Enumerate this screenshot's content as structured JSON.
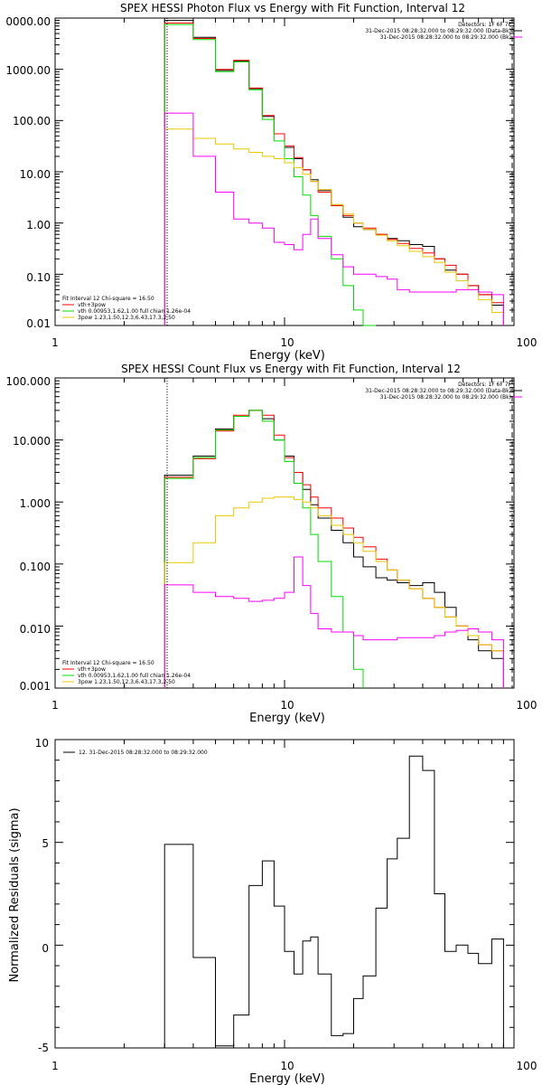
{
  "colors": {
    "total": "#000000",
    "vth_3pow": "#ff0000",
    "vth": "#00dd00",
    "pow": "#e8c800",
    "bk": "#ff00ff"
  },
  "chart_data": [
    {
      "type": "line",
      "title": "SPEX HESSI Photon Flux vs Energy with Fit Function, Interval 12",
      "xlabel": "Energy (keV)",
      "ylabel": "",
      "xscale": "log",
      "yscale": "log",
      "xlim": [
        1,
        100
      ],
      "ylim": [
        0.01,
        10000
      ],
      "xticks": [
        "1",
        "10",
        "100"
      ],
      "yticks": [
        "0.01",
        "0.10",
        "1.00",
        "10.00",
        "100.00",
        "1000.00",
        "0000.00"
      ],
      "legend_top": [
        "Detectors: 1F 6F 7F",
        "31-Dec-2015 08:28:32.000 to 08:29:32.000 (Data-Bk)",
        "31-Dec-2015 08:28:32.000 to 08:29:32.000 (Bk)"
      ],
      "legend_bottom": [
        "Fit Interval 12   Chi-square = 16.50",
        "vth+3pow",
        "vth 0.00953,1.62,1.00  full chian 1.26e-04",
        "3pow 1.23,1.50,12.3,6.43,17.3,2.50"
      ],
      "edges": [
        3,
        4,
        5,
        6,
        7,
        8,
        9,
        10,
        11,
        12,
        13,
        14,
        16,
        18,
        20,
        22,
        25,
        28,
        31,
        35,
        40,
        45,
        50,
        56,
        63,
        70,
        80,
        90
      ],
      "series": [
        {
          "name": "Data-Bk",
          "color_key": "total",
          "values": [
            9000,
            4200,
            950,
            1450,
            420,
            120,
            55,
            30,
            18,
            11,
            7,
            4.3,
            2.2,
            1.3,
            0.85,
            0.75,
            0.6,
            0.5,
            0.45,
            0.38,
            0.35,
            0.2,
            0.12,
            0.1,
            0.06,
            0.04,
            0.025
          ]
        },
        {
          "name": "vth+3pow",
          "color_key": "vth_3pow",
          "values": [
            8000,
            4000,
            1000,
            1500,
            430,
            125,
            55,
            32,
            19,
            11,
            6.5,
            4,
            2.2,
            1.4,
            1.0,
            0.8,
            0.6,
            0.48,
            0.4,
            0.32,
            0.26,
            0.2,
            0.15,
            0.1,
            0.06,
            0.04,
            0.028
          ]
        },
        {
          "name": "vth",
          "color_key": "vth",
          "values": [
            7500,
            3800,
            900,
            1400,
            400,
            105,
            40,
            18,
            8,
            3.5,
            1.4,
            0.55,
            0.2,
            0.06,
            0.02,
            0.009,
            null,
            null,
            null,
            null,
            null,
            null,
            null,
            null,
            null,
            null,
            null
          ]
        },
        {
          "name": "3pow",
          "color_key": "pow",
          "values": [
            68,
            45,
            35,
            28,
            24,
            20,
            18,
            15,
            12,
            9,
            6.5,
            4.5,
            2.3,
            1.5,
            1.0,
            0.75,
            0.58,
            0.45,
            0.36,
            0.28,
            0.22,
            0.17,
            0.11,
            0.075,
            0.05,
            0.032,
            0.018
          ]
        },
        {
          "name": "Bk",
          "color_key": "bk",
          "values": [
            140,
            20,
            4,
            1.2,
            1.0,
            0.8,
            0.42,
            0.38,
            0.3,
            0.6,
            1.2,
            0.5,
            0.24,
            0.14,
            0.1,
            0.1,
            0.09,
            0.08,
            0.05,
            0.045,
            0.045,
            0.045,
            0.045,
            0.05,
            0.05,
            0.045,
            0.04
          ]
        }
      ]
    },
    {
      "type": "line",
      "title": "SPEX HESSI Count Flux vs Energy with Fit Function, Interval 12",
      "xlabel": "Energy (keV)",
      "ylabel": "",
      "xscale": "log",
      "yscale": "log",
      "xlim": [
        1,
        100
      ],
      "ylim": [
        0.001,
        100
      ],
      "xticks": [
        "1",
        "10",
        "100"
      ],
      "yticks": [
        "0.001",
        "0.010",
        "0.100",
        "1.000",
        "10.000",
        "100.000"
      ],
      "legend_top": [
        "Detectors: 1F 6F 7F",
        "31-Dec-2015 08:28:32.000 to 08:29:32.000 (Data-Bk)",
        "31-Dec-2015 08:28:32.000 to 08:29:32.000 (Bk)"
      ],
      "legend_bottom": [
        "Fit Interval 12   Chi-square = 16.50",
        "vth+3pow",
        "vth 0.00953,1.62,1.00  full chian 1.26e-04",
        "3pow 1.23,1.50,12.3,6.43,17.3,2.50"
      ],
      "edges": [
        3,
        4,
        5,
        6,
        7,
        8,
        9,
        10,
        11,
        12,
        13,
        14,
        16,
        18,
        20,
        22,
        25,
        28,
        31,
        35,
        40,
        45,
        50,
        56,
        63,
        70,
        80,
        90
      ],
      "series": [
        {
          "name": "Data-Bk",
          "color_key": "total",
          "values": [
            2.7,
            5.5,
            15,
            24,
            30,
            22,
            10,
            5.5,
            3.0,
            1.6,
            0.9,
            0.55,
            0.35,
            0.22,
            0.13,
            0.09,
            0.06,
            0.055,
            0.05,
            0.045,
            0.05,
            0.035,
            0.02,
            0.01,
            0.006,
            0.004,
            0.003
          ]
        },
        {
          "name": "vth+3pow",
          "color_key": "vth_3pow",
          "values": [
            2.5,
            5.0,
            14,
            25,
            30,
            25,
            12,
            5.2,
            3.0,
            1.9,
            1.2,
            0.8,
            0.55,
            0.38,
            0.27,
            0.19,
            0.12,
            0.08,
            0.055,
            0.04,
            0.028,
            0.02,
            0.014,
            0.01,
            0.007,
            0.005,
            0.004
          ]
        },
        {
          "name": "vth",
          "color_key": "vth",
          "values": [
            2.4,
            5.2,
            14.5,
            24,
            30,
            20,
            10,
            4.5,
            2.0,
            0.8,
            0.3,
            0.11,
            0.03,
            0.008,
            0.002,
            null,
            null,
            null,
            null,
            null,
            null,
            null,
            null,
            null,
            null,
            null,
            null
          ]
        },
        {
          "name": "3pow",
          "color_key": "pow",
          "values": [
            0.105,
            0.22,
            0.6,
            0.8,
            1.0,
            1.15,
            1.2,
            1.2,
            1.1,
            1.0,
            0.8,
            0.6,
            0.42,
            0.3,
            0.22,
            0.16,
            0.11,
            0.08,
            0.055,
            0.04,
            0.028,
            0.02,
            0.014,
            0.01,
            0.007,
            0.005,
            0.004
          ]
        },
        {
          "name": "Bk",
          "color_key": "bk",
          "values": [
            0.046,
            0.035,
            0.03,
            0.028,
            0.025,
            0.026,
            0.028,
            0.035,
            0.13,
            0.045,
            0.016,
            0.009,
            0.008,
            0.008,
            0.007,
            0.006,
            0.006,
            0.006,
            0.0065,
            0.0065,
            0.0065,
            0.007,
            0.008,
            0.0085,
            0.009,
            0.008,
            0.006
          ]
        }
      ]
    },
    {
      "type": "line",
      "title": "",
      "xlabel": "Energy (keV)",
      "ylabel": "Normalized Residuals (sigma)",
      "xscale": "log",
      "yscale": "linear",
      "xlim": [
        1,
        100
      ],
      "ylim": [
        -5,
        10
      ],
      "xticks": [
        "1",
        "10",
        "100"
      ],
      "yticks": [
        "-5",
        "0",
        "5",
        "10"
      ],
      "legend_top": [
        "12. 31-Dec-2015 08:28:32.000 to 08:29:32.000"
      ],
      "legend_bottom": [],
      "edges": [
        3,
        4,
        5,
        6,
        7,
        8,
        9,
        10,
        11,
        12,
        13,
        14,
        16,
        18,
        20,
        22,
        25,
        28,
        31,
        35,
        40,
        45,
        50,
        56,
        63,
        70,
        80,
        90
      ],
      "series": [
        {
          "name": "",
          "color_key": "total",
          "values": [
            4.9,
            -0.6,
            -4.9,
            -3.4,
            2.9,
            4.1,
            1.9,
            -0.3,
            -1.4,
            0.2,
            0.4,
            -1.4,
            -4.4,
            -4.3,
            -2.6,
            -1.5,
            1.8,
            4.2,
            5.2,
            9.2,
            8.5,
            2.5,
            -0.3,
            0.0,
            -0.4,
            -0.9,
            0.3
          ]
        }
      ]
    }
  ]
}
